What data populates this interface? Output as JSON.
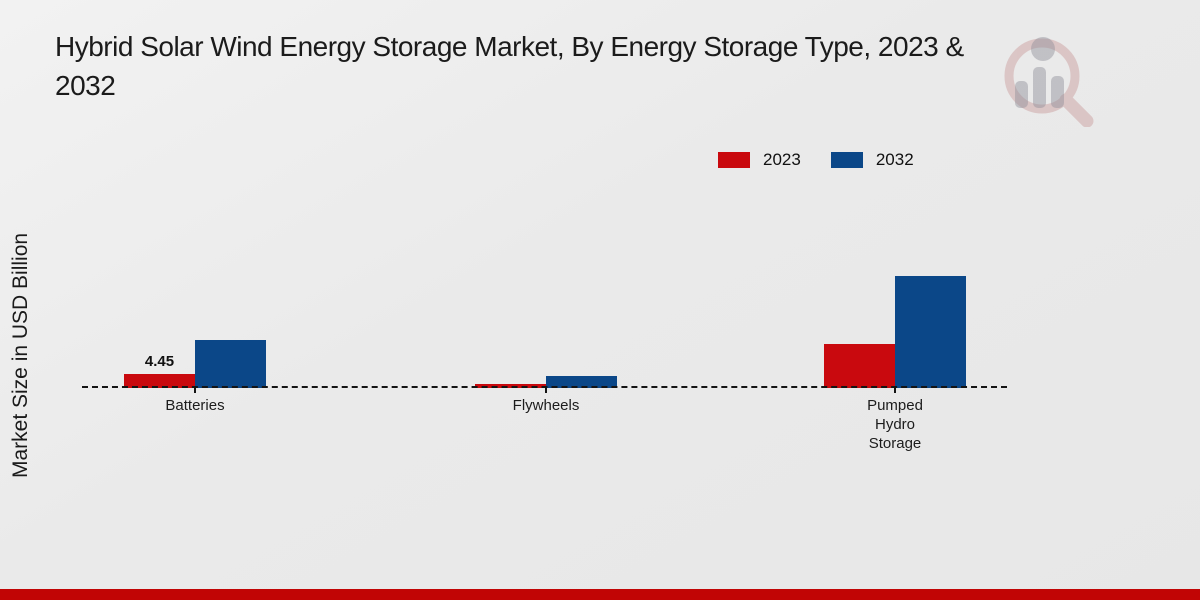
{
  "header": {
    "title_line1": "Hybrid Solar Wind Energy Storage Market, By Energy Storage Type, 2023 &",
    "title_line2": "2032"
  },
  "branding": {
    "logo": "magnifier-bar-chart-watermark",
    "footer_accent_color": "#c10505"
  },
  "chart_data": {
    "type": "bar",
    "title": "Hybrid Solar Wind Energy Storage Market, By Energy Storage Type, 2023 & 2032",
    "xlabel": "",
    "ylabel": "Market Size in USD Billion",
    "categories": [
      "Batteries",
      "Flywheels",
      "Pumped Hydro Storage"
    ],
    "series": [
      {
        "name": "2023",
        "color": "#c9090e",
        "values": [
          4.45,
          1.2,
          13.7
        ],
        "data_labels": [
          "4.45",
          null,
          null
        ]
      },
      {
        "name": "2032",
        "color": "#0b4788",
        "values": [
          14.9,
          3.7,
          34.8
        ],
        "data_labels": [
          null,
          null,
          null
        ]
      }
    ],
    "ylim": [
      0,
      40
    ],
    "grid": false,
    "y_axis_ticks_visible": false,
    "baseline_style": "black dashed",
    "legend_position": "top-right"
  }
}
